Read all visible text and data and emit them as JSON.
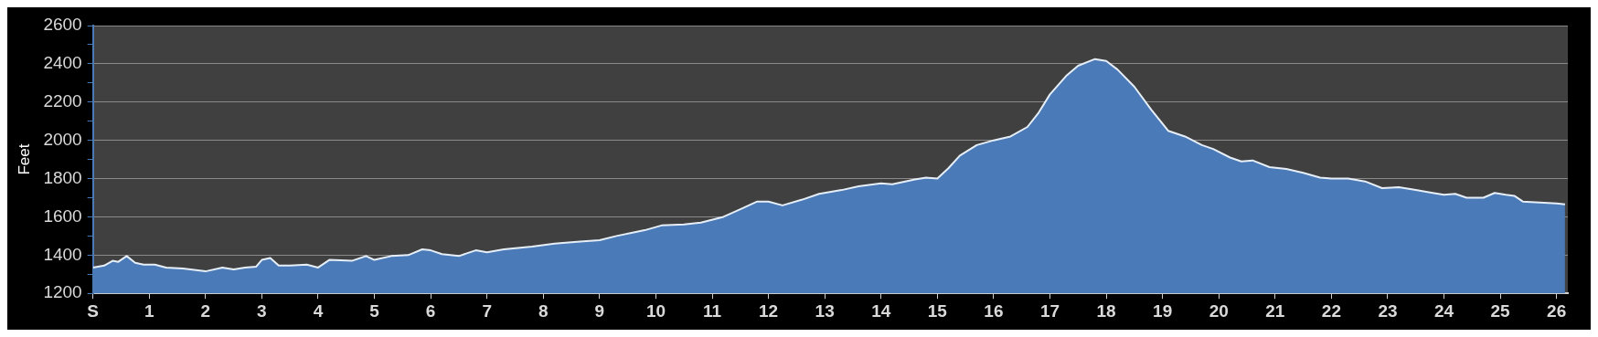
{
  "chart_data": {
    "type": "area",
    "ylabel": "Feet",
    "x": [
      0,
      0.2,
      0.35,
      0.45,
      0.6,
      0.75,
      0.9,
      1.1,
      1.3,
      1.6,
      2.0,
      2.3,
      2.5,
      2.7,
      2.9,
      3.0,
      3.15,
      3.3,
      3.5,
      3.8,
      4.0,
      4.2,
      4.6,
      4.85,
      5.0,
      5.3,
      5.6,
      5.85,
      6.0,
      6.2,
      6.5,
      6.8,
      7.0,
      7.3,
      7.8,
      8.2,
      8.6,
      9.0,
      9.3,
      9.8,
      10.1,
      10.5,
      10.8,
      11.2,
      11.5,
      11.8,
      12.0,
      12.25,
      12.6,
      12.9,
      13.3,
      13.6,
      14.0,
      14.2,
      14.6,
      14.8,
      15.0,
      15.2,
      15.4,
      15.7,
      16.0,
      16.3,
      16.6,
      16.8,
      17.0,
      17.3,
      17.5,
      17.8,
      18.0,
      18.2,
      18.5,
      18.8,
      19.1,
      19.4,
      19.7,
      19.9,
      20.2,
      20.4,
      20.6,
      20.9,
      21.2,
      21.5,
      21.8,
      22.0,
      22.3,
      22.6,
      22.9,
      23.2,
      23.5,
      23.8,
      24.0,
      24.2,
      24.4,
      24.7,
      24.9,
      25.1,
      25.25,
      25.4,
      25.7,
      26.0,
      26.15
    ],
    "series": [
      {
        "color": "#4a7ab8",
        "values": [
          1335,
          1345,
          1370,
          1365,
          1395,
          1360,
          1350,
          1350,
          1335,
          1330,
          1315,
          1335,
          1325,
          1335,
          1340,
          1375,
          1385,
          1345,
          1345,
          1350,
          1335,
          1375,
          1370,
          1395,
          1375,
          1395,
          1400,
          1430,
          1425,
          1405,
          1395,
          1425,
          1415,
          1430,
          1445,
          1460,
          1470,
          1478,
          1500,
          1530,
          1555,
          1560,
          1570,
          1600,
          1640,
          1680,
          1680,
          1660,
          1690,
          1720,
          1740,
          1760,
          1775,
          1770,
          1795,
          1805,
          1800,
          1855,
          1920,
          1975,
          2000,
          2020,
          2070,
          2145,
          2240,
          2340,
          2390,
          2425,
          2415,
          2370,
          2280,
          2160,
          2050,
          2020,
          1975,
          1955,
          1910,
          1890,
          1895,
          1860,
          1850,
          1830,
          1805,
          1800,
          1800,
          1785,
          1750,
          1755,
          1740,
          1725,
          1715,
          1720,
          1700,
          1700,
          1725,
          1715,
          1710,
          1680,
          1675,
          1670,
          1665
        ]
      }
    ],
    "xlim": [
      0,
      26.2
    ],
    "xticks": [
      {
        "value": 0,
        "label": "S"
      },
      1,
      2,
      3,
      4,
      5,
      6,
      7,
      8,
      9,
      10,
      11,
      12,
      13,
      14,
      15,
      16,
      17,
      18,
      19,
      20,
      21,
      22,
      23,
      24,
      25,
      26
    ],
    "ylim": [
      1200,
      2600
    ],
    "yticks": [
      1200,
      {
        "value": 1300,
        "label": null
      },
      1400,
      {
        "value": 1500,
        "label": null
      },
      1600,
      {
        "value": 1700,
        "label": null
      },
      1800,
      {
        "value": 1900,
        "label": null
      },
      2000,
      {
        "value": 2100,
        "label": null
      },
      2200,
      {
        "value": 2300,
        "label": null
      },
      2400,
      {
        "value": 2500,
        "label": null
      },
      2600
    ],
    "grid": "y",
    "legend": false,
    "marker": "none",
    "line_style": "solid"
  }
}
